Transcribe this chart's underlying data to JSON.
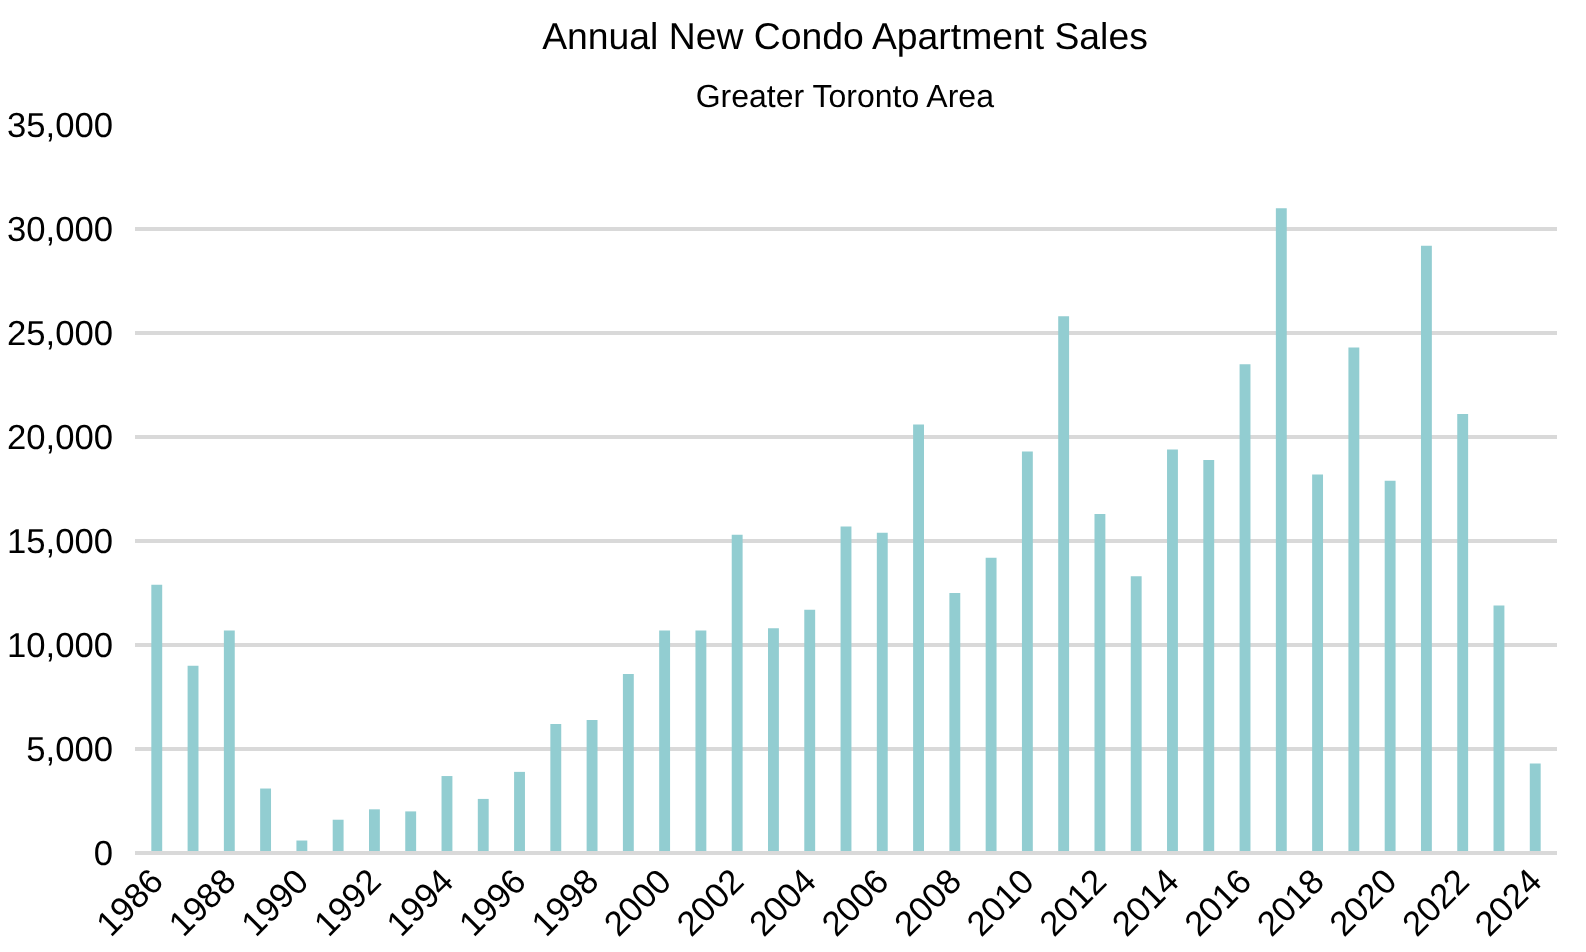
{
  "chart_data": {
    "type": "bar",
    "title": "Annual New Condo Apartment Sales",
    "subtitle": "Greater Toronto Area",
    "x": [
      1986,
      1987,
      1988,
      1989,
      1990,
      1991,
      1992,
      1993,
      1994,
      1995,
      1996,
      1997,
      1998,
      1999,
      2000,
      2001,
      2002,
      2003,
      2004,
      2005,
      2006,
      2007,
      2008,
      2009,
      2010,
      2011,
      2012,
      2013,
      2014,
      2015,
      2016,
      2017,
      2018,
      2019,
      2020,
      2021,
      2022,
      2023,
      2024
    ],
    "values": [
      12900,
      9000,
      10700,
      3100,
      600,
      1600,
      2100,
      2000,
      3700,
      2600,
      3900,
      6200,
      6400,
      8600,
      10700,
      10700,
      15300,
      10800,
      11700,
      15700,
      15400,
      20600,
      12500,
      14200,
      19300,
      25800,
      16300,
      13300,
      19400,
      18900,
      23500,
      31000,
      18200,
      24300,
      17900,
      29200,
      21100,
      11900,
      4300
    ],
    "color": "#92cdd1",
    "xlim": [
      1985.4,
      2024.6
    ],
    "xticks": [
      1986,
      1988,
      1990,
      1992,
      1994,
      1996,
      1998,
      2000,
      2002,
      2004,
      2006,
      2008,
      2010,
      2012,
      2014,
      2016,
      2018,
      2020,
      2022,
      2024
    ],
    "ylim": [
      0,
      35000
    ],
    "yticks": [
      {
        "value": 0,
        "label": "0"
      },
      {
        "value": 5000,
        "label": "5,000"
      },
      {
        "value": 10000,
        "label": "10,000"
      },
      {
        "value": 15000,
        "label": "15,000"
      },
      {
        "value": 20000,
        "label": "20,000"
      },
      {
        "value": 25000,
        "label": "25,000"
      },
      {
        "value": 30000,
        "label": "30,000"
      },
      {
        "value": 35000,
        "label": "35,000"
      }
    ],
    "grid": "y"
  }
}
